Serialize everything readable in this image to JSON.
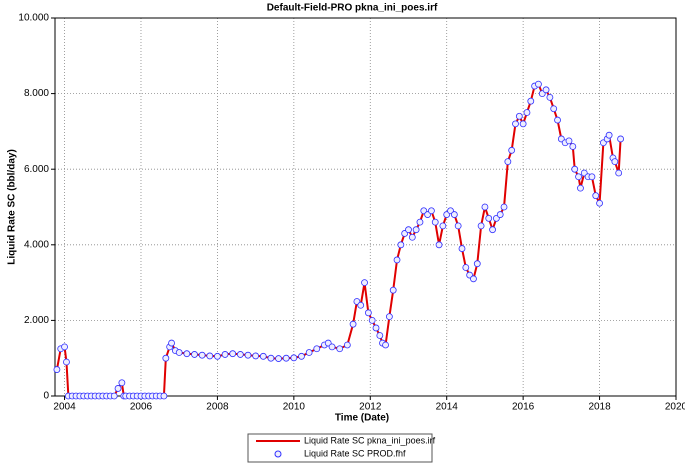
{
  "chart_data": {
    "type": "line",
    "title": "Default-Field-PRO pkna_ini_poes.irf",
    "x_label": "Time (Date)",
    "y_label": "Liquid Rate SC (bbl/day)",
    "x": [
      2003.8,
      2003.9,
      2004.0,
      2004.05,
      2004.1,
      2004.2,
      2004.3,
      2004.4,
      2004.5,
      2004.6,
      2004.7,
      2004.8,
      2004.9,
      2005.0,
      2005.1,
      2005.2,
      2005.3,
      2005.4,
      2005.5,
      2005.55,
      2005.6,
      2005.7,
      2005.8,
      2005.9,
      2006.0,
      2006.1,
      2006.2,
      2006.3,
      2006.4,
      2006.5,
      2006.6,
      2006.65,
      2006.75,
      2006.8,
      2006.9,
      2007.0,
      2007.2,
      2007.4,
      2007.6,
      2007.8,
      2008.0,
      2008.2,
      2008.4,
      2008.6,
      2008.8,
      2009.0,
      2009.2,
      2009.4,
      2009.6,
      2009.8,
      2010.0,
      2010.2,
      2010.4,
      2010.6,
      2010.8,
      2010.9,
      2011.0,
      2011.2,
      2011.4,
      2011.55,
      2011.65,
      2011.75,
      2011.85,
      2011.95,
      2012.05,
      2012.15,
      2012.25,
      2012.32,
      2012.4,
      2012.5,
      2012.6,
      2012.7,
      2012.8,
      2012.9,
      2013.0,
      2013.1,
      2013.2,
      2013.3,
      2013.4,
      2013.5,
      2013.6,
      2013.7,
      2013.8,
      2013.9,
      2014.0,
      2014.1,
      2014.2,
      2014.3,
      2014.4,
      2014.5,
      2014.6,
      2014.7,
      2014.8,
      2014.9,
      2015.0,
      2015.1,
      2015.2,
      2015.3,
      2015.4,
      2015.5,
      2015.6,
      2015.7,
      2015.8,
      2015.9,
      2016.0,
      2016.1,
      2016.2,
      2016.3,
      2016.4,
      2016.5,
      2016.6,
      2016.7,
      2016.8,
      2016.9,
      2017.0,
      2017.1,
      2017.2,
      2017.3,
      2017.35,
      2017.45,
      2017.5,
      2017.6,
      2017.7,
      2017.8,
      2017.9,
      2018.0,
      2018.1,
      2018.2,
      2018.25,
      2018.35,
      2018.4,
      2018.5,
      2018.55
    ],
    "series": [
      {
        "name": "Liquid Rate SC pkna_ini_poes.irf",
        "color": "#e00000",
        "marker": "line",
        "values": [
          700,
          1250,
          1300,
          900,
          0,
          0,
          0,
          0,
          0,
          0,
          0,
          0,
          0,
          0,
          0,
          0,
          0,
          200,
          350,
          0,
          0,
          0,
          0,
          0,
          0,
          0,
          0,
          0,
          0,
          0,
          0,
          1000,
          1300,
          1400,
          1200,
          1150,
          1120,
          1100,
          1080,
          1060,
          1050,
          1100,
          1120,
          1100,
          1080,
          1060,
          1050,
          1000,
          990,
          1000,
          1010,
          1050,
          1150,
          1250,
          1350,
          1400,
          1300,
          1250,
          1350,
          1900,
          2500,
          2400,
          3000,
          2200,
          2000,
          1800,
          1600,
          1400,
          1350,
          2100,
          2800,
          3600,
          4000,
          4300,
          4400,
          4200,
          4400,
          4600,
          4900,
          4800,
          4900,
          4600,
          4000,
          4500,
          4800,
          4900,
          4800,
          4500,
          3900,
          3400,
          3200,
          3100,
          3500,
          4500,
          5000,
          4700,
          4400,
          4700,
          4800,
          5000,
          6200,
          6500,
          7200,
          7400,
          7200,
          7500,
          7800,
          8200,
          8250,
          8000,
          8100,
          7900,
          7600,
          7300,
          6800,
          6700,
          6750,
          6600,
          6000,
          5800,
          5500,
          5900,
          5800,
          5800,
          5300,
          5100,
          6700,
          6800,
          6900,
          6300,
          6200,
          5900,
          6800
        ]
      },
      {
        "name": "Liquid Rate SC PROD.fhf",
        "color": "#3030ff",
        "marker": "circle",
        "values": [
          700,
          1250,
          1300,
          900,
          0,
          0,
          0,
          0,
          0,
          0,
          0,
          0,
          0,
          0,
          0,
          0,
          0,
          200,
          350,
          0,
          0,
          0,
          0,
          0,
          0,
          0,
          0,
          0,
          0,
          0,
          0,
          1000,
          1300,
          1400,
          1200,
          1150,
          1120,
          1100,
          1080,
          1060,
          1050,
          1100,
          1120,
          1100,
          1080,
          1060,
          1050,
          1000,
          990,
          1000,
          1010,
          1050,
          1150,
          1250,
          1350,
          1400,
          1300,
          1250,
          1350,
          1900,
          2500,
          2400,
          3000,
          2200,
          2000,
          1800,
          1600,
          1400,
          1350,
          2100,
          2800,
          3600,
          4000,
          4300,
          4400,
          4200,
          4400,
          4600,
          4900,
          4800,
          4900,
          4600,
          4000,
          4500,
          4800,
          4900,
          4800,
          4500,
          3900,
          3400,
          3200,
          3100,
          3500,
          4500,
          5000,
          4700,
          4400,
          4700,
          4800,
          5000,
          6200,
          6500,
          7200,
          7400,
          7200,
          7500,
          7800,
          8200,
          8250,
          8000,
          8100,
          7900,
          7600,
          7300,
          6800,
          6700,
          6750,
          6600,
          6000,
          5800,
          5500,
          5900,
          5800,
          5800,
          5300,
          5100,
          6700,
          6800,
          6900,
          6300,
          6200,
          5900,
          6800
        ]
      }
    ],
    "xlim": [
      2003.75,
      2020
    ],
    "xticks": [
      2004,
      2006,
      2008,
      2010,
      2012,
      2014,
      2016,
      2018,
      2020
    ],
    "ylim": [
      0,
      10000
    ],
    "yticks": [
      0,
      {
        "value": 2000,
        "label": "2.000"
      },
      {
        "value": 4000,
        "label": "4.000"
      },
      {
        "value": 6000,
        "label": "6.000"
      },
      {
        "value": 8000,
        "label": "8.000"
      },
      {
        "value": 10000,
        "label": "10.000"
      }
    ],
    "grid": true,
    "legend": "bottom"
  }
}
